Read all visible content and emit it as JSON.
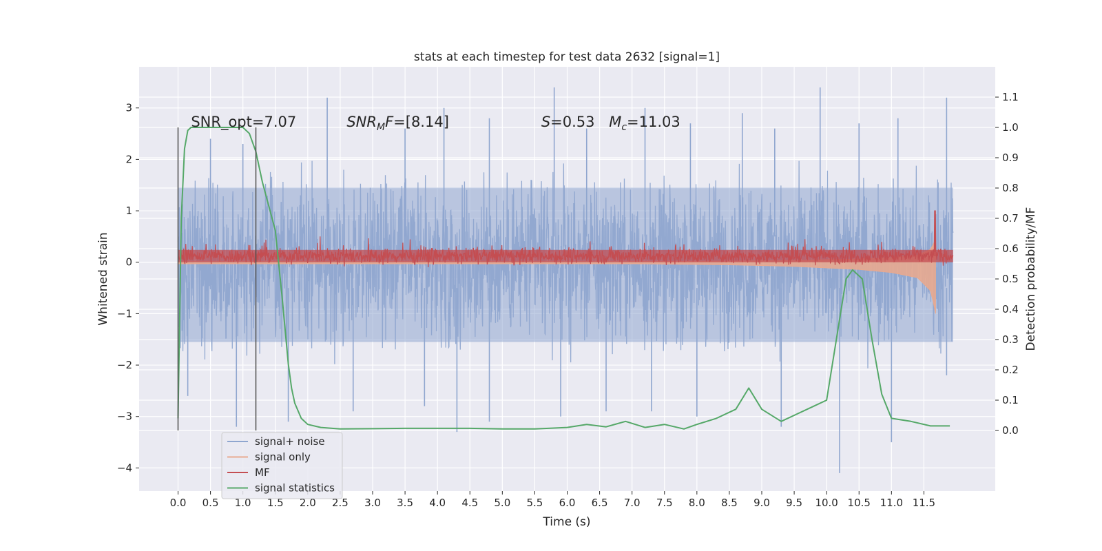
{
  "chart_data": {
    "type": "line",
    "title": "stats at each timestep for test data 2632 [signal=1]",
    "xlabel": "Time (s)",
    "ylabel": "Whitened strain",
    "ylabel_right": "Detection probability/MF",
    "xlim": [
      -0.6,
      12.6
    ],
    "ylim": [
      -4.45,
      3.8
    ],
    "ylim_right": [
      -0.2,
      1.2
    ],
    "x_ticks": [
      0.0,
      0.5,
      1.0,
      1.5,
      2.0,
      2.5,
      3.0,
      3.5,
      4.0,
      4.5,
      5.0,
      5.5,
      6.0,
      6.5,
      7.0,
      7.5,
      8.0,
      8.5,
      9.0,
      9.5,
      10.0,
      10.5,
      11.0,
      11.5
    ],
    "x_tick_labels": [
      "0.0",
      "0.5",
      "1.0",
      "1.5",
      "2.0",
      "2.5",
      "3.0",
      "3.5",
      "4.0",
      "4.5",
      "5.0",
      "5.5",
      "6.0",
      "6.5",
      "7.0",
      "7.5",
      "8.0",
      "8.5",
      "9.0",
      "9.5",
      "10.0",
      "10.5",
      "11.0",
      "11.5"
    ],
    "y_ticks": [
      -4,
      -3,
      -2,
      -1,
      0,
      1,
      2,
      3
    ],
    "y_tick_labels": [
      "−4",
      "−3",
      "−2",
      "−1",
      "0",
      "1",
      "2",
      "3"
    ],
    "y_ticks_right": [
      0.0,
      0.1,
      0.2,
      0.3,
      0.4,
      0.5,
      0.6,
      0.7,
      0.8,
      0.9,
      1.0,
      1.1
    ],
    "y_tick_labels_right": [
      "0.0",
      "0.1",
      "0.2",
      "0.3",
      "0.4",
      "0.5",
      "0.6",
      "0.7",
      "0.8",
      "0.9",
      "1.0",
      "1.1"
    ],
    "grid": true,
    "legend_position": "lower-left",
    "annotations": [
      {
        "text": "SNR_opt=7.07",
        "x": 0.2
      },
      {
        "text": "SNR_MF=[8.14]",
        "x": 2.6
      },
      {
        "text": "S=0.53   M_c=11.03",
        "x": 5.6
      }
    ],
    "vertical_lines": [
      0.0,
      1.2
    ],
    "series": [
      {
        "name": "signal+ noise",
        "color": "#8fa6cf",
        "x_range": [
          0.0,
          11.95
        ],
        "envelope_upper": 1.5,
        "envelope_lower": -1.6,
        "spike_max": [
          [
            0.5,
            2.4
          ],
          [
            1.0,
            2.3
          ],
          [
            2.3,
            3.2
          ],
          [
            3.5,
            2.6
          ],
          [
            4.1,
            3.0
          ],
          [
            4.8,
            2.8
          ],
          [
            5.8,
            3.4
          ],
          [
            6.3,
            2.6
          ],
          [
            7.2,
            3.0
          ],
          [
            7.9,
            2.7
          ],
          [
            8.7,
            2.9
          ],
          [
            9.2,
            2.6
          ],
          [
            9.9,
            3.4
          ],
          [
            10.5,
            2.7
          ],
          [
            11.1,
            2.8
          ],
          [
            11.85,
            3.2
          ]
        ],
        "spike_min": [
          [
            0.15,
            -2.6
          ],
          [
            0.9,
            -3.2
          ],
          [
            1.7,
            -3.1
          ],
          [
            2.7,
            -2.9
          ],
          [
            3.8,
            -2.8
          ],
          [
            4.3,
            -3.3
          ],
          [
            4.8,
            -3.1
          ],
          [
            5.9,
            -3.0
          ],
          [
            6.6,
            -2.9
          ],
          [
            7.3,
            -2.9
          ],
          [
            8.0,
            -3.0
          ],
          [
            9.3,
            -3.2
          ],
          [
            10.2,
            -4.1
          ],
          [
            11.0,
            -3.5
          ],
          [
            11.85,
            -2.2
          ]
        ]
      },
      {
        "name": "signal only",
        "color": "#e8a98f",
        "x": [
          0.0,
          7.0,
          8.5,
          9.5,
          10.5,
          11.0,
          11.4,
          11.6,
          11.65,
          11.68,
          11.7
        ],
        "amplitude": [
          0.03,
          0.03,
          0.05,
          0.08,
          0.14,
          0.2,
          0.3,
          0.55,
          0.8,
          1.0,
          0.0
        ]
      },
      {
        "name": "MF",
        "color": "#c44e52",
        "x_range": [
          0.0,
          11.95
        ],
        "baseline": 0.12,
        "amplitude": 0.12,
        "peak": [
          11.67,
          1.0
        ]
      },
      {
        "name": "signal statistics",
        "color": "#55a868",
        "x": [
          0.0,
          0.05,
          0.1,
          0.15,
          0.2,
          0.3,
          0.4,
          0.6,
          0.8,
          1.0,
          1.1,
          1.2,
          1.3,
          1.4,
          1.5,
          1.6,
          1.7,
          1.75,
          1.8,
          1.9,
          2.0,
          2.2,
          2.5,
          3.0,
          3.5,
          4.0,
          4.5,
          5.0,
          5.5,
          5.8,
          6.0,
          6.3,
          6.6,
          6.9,
          7.2,
          7.5,
          7.8,
          8.0,
          8.3,
          8.6,
          8.8,
          9.0,
          9.3,
          9.5,
          9.8,
          10.0,
          10.15,
          10.3,
          10.4,
          10.55,
          10.7,
          10.85,
          11.0,
          11.3,
          11.6,
          11.9
        ],
        "y": [
          0.04,
          0.7,
          0.93,
          0.99,
          1.0,
          1.0,
          1.0,
          1.0,
          1.0,
          1.0,
          0.98,
          0.92,
          0.82,
          0.74,
          0.66,
          0.45,
          0.22,
          0.14,
          0.09,
          0.04,
          0.02,
          0.01,
          0.005,
          0.006,
          0.007,
          0.007,
          0.007,
          0.005,
          0.005,
          0.008,
          0.01,
          0.02,
          0.012,
          0.03,
          0.01,
          0.02,
          0.005,
          0.02,
          0.04,
          0.07,
          0.14,
          0.07,
          0.03,
          0.05,
          0.08,
          0.1,
          0.3,
          0.5,
          0.53,
          0.5,
          0.3,
          0.12,
          0.04,
          0.03,
          0.015,
          0.015
        ]
      }
    ]
  }
}
